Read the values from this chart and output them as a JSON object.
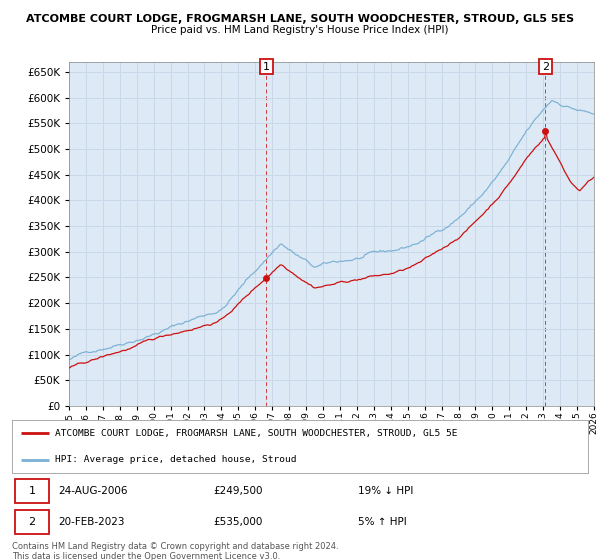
{
  "title_line1": "ATCOMBE COURT LODGE, FROGMARSH LANE, SOUTH WOODCHESTER, STROUD, GL5 5ES",
  "title_line2": "Price paid vs. HM Land Registry's House Price Index (HPI)",
  "ylim": [
    0,
    670000
  ],
  "yticks": [
    0,
    50000,
    100000,
    150000,
    200000,
    250000,
    300000,
    350000,
    400000,
    450000,
    500000,
    550000,
    600000,
    650000
  ],
  "x_start_year": 1995,
  "x_end_year": 2026,
  "hpi_color": "#7ab0d4",
  "sale_color": "#cc1111",
  "sale1_year": 2006.65,
  "sale1_price": 249500,
  "sale2_year": 2023.13,
  "sale2_price": 535000,
  "legend_label1": "ATCOMBE COURT LODGE, FROGMARSH LANE, SOUTH WOODCHESTER, STROUD, GL5 5E",
  "legend_label2": "HPI: Average price, detached house, Stroud",
  "note1_date": "24-AUG-2006",
  "note1_price": "£249,500",
  "note1_hpi": "19% ↓ HPI",
  "note2_date": "20-FEB-2023",
  "note2_price": "£535,000",
  "note2_hpi": "5% ↑ HPI",
  "footer": "Contains HM Land Registry data © Crown copyright and database right 2024.\nThis data is licensed under the Open Government Licence v3.0.",
  "bg_color": "#ffffff",
  "grid_color": "#c8d8e8",
  "panel_bg": "#ddeaf5"
}
